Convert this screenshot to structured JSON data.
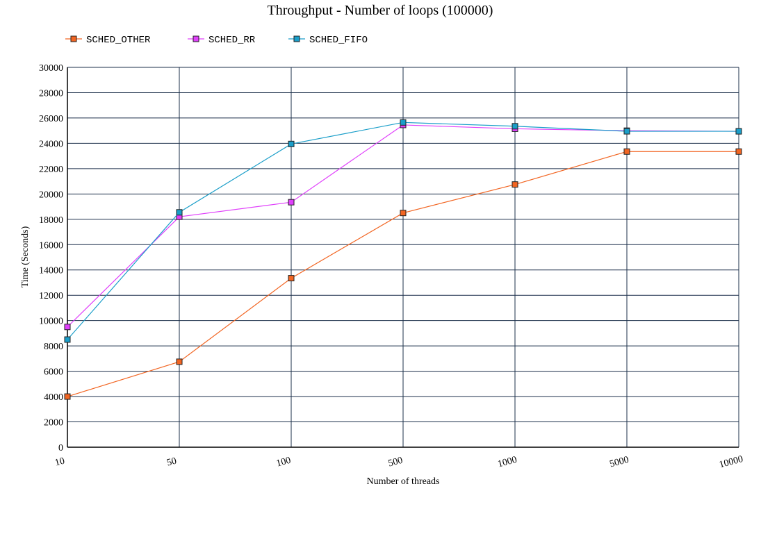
{
  "chart_data": {
    "type": "line",
    "title": "Throughput - Number of loops (100000)",
    "xlabel": "Number of threads",
    "ylabel": "Time (Seconds)",
    "categories": [
      "10",
      "50",
      "100",
      "500",
      "1000",
      "5000",
      "10000"
    ],
    "ylim": [
      0,
      30000
    ],
    "yticks": [
      0,
      2000,
      4000,
      6000,
      8000,
      10000,
      12000,
      14000,
      16000,
      18000,
      20000,
      22000,
      24000,
      26000,
      28000,
      30000
    ],
    "grid": true,
    "legend_position": "top-left",
    "series": [
      {
        "name": "SCHED_OTHER",
        "color": "#f26522",
        "values": [
          4000,
          6750,
          13350,
          18500,
          20750,
          23350,
          23350
        ]
      },
      {
        "name": "SCHED_RR",
        "color": "#e040fb",
        "values": [
          9500,
          18200,
          19350,
          25450,
          25150,
          25000,
          24950
        ]
      },
      {
        "name": "SCHED_FIFO",
        "color": "#1a9ec9",
        "values": [
          8500,
          18550,
          23950,
          25650,
          25350,
          24950,
          24950
        ]
      }
    ]
  },
  "colors": {
    "grid": "#1b2f4a",
    "axis": "#000000",
    "background": "#ffffff"
  }
}
